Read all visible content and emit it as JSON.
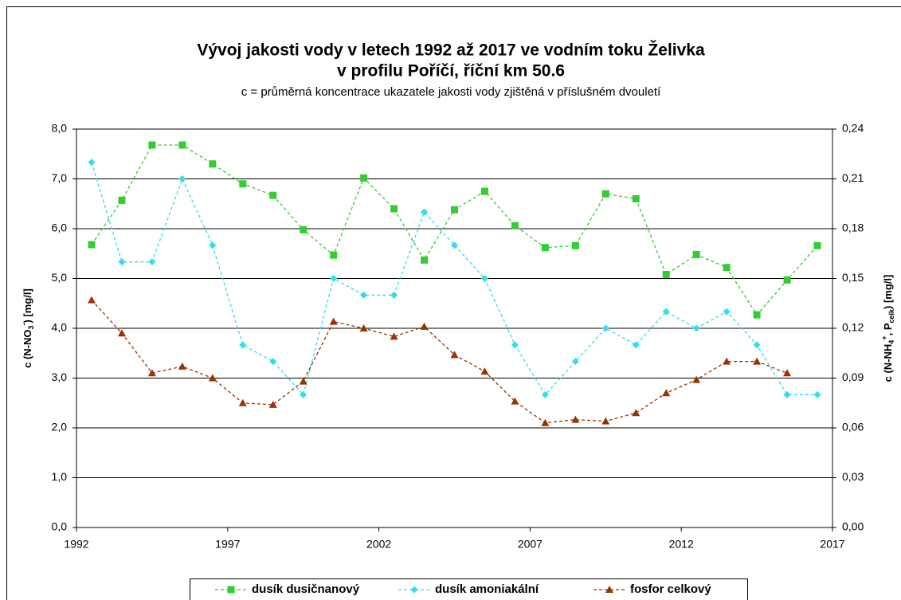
{
  "chart_data": {
    "type": "line",
    "title": [
      "Vývoj jakosti vody v letech 1992 až 2017 ve vodním toku Želivka",
      "v profilu Poříčí, říční km 50.6"
    ],
    "subtitle": "c = průměrná koncentrace ukazatele jakosti vody zjištěná v příslušném dvouletí",
    "ylabel": [
      "c (N-NO",
      "3",
      "-",
      ") [mg/l]"
    ],
    "y2label": [
      "c (N-NH",
      "4",
      "+",
      ",  P",
      "celk",
      ") [mg/l]"
    ],
    "x": [
      1992.5,
      1993.5,
      1994.5,
      1995.5,
      1996.5,
      1997.5,
      1998.5,
      1999.5,
      2000.5,
      2001.5,
      2002.5,
      2003.5,
      2004.5,
      2005.5,
      2006.5,
      2007.5,
      2008.5,
      2009.5,
      2010.5,
      2011.5,
      2012.5,
      2013.5,
      2014.5,
      2015.5,
      2016.5
    ],
    "xlim": [
      1992,
      2017
    ],
    "xticks": [
      1992,
      1997,
      2002,
      2007,
      2012,
      2017
    ],
    "ylim": [
      0,
      8
    ],
    "yticks": [
      {
        "value": 0,
        "label": "0,0"
      },
      {
        "value": 1,
        "label": "1,0"
      },
      {
        "value": 2,
        "label": "2,0"
      },
      {
        "value": 3,
        "label": "3,0"
      },
      {
        "value": 4,
        "label": "4,0"
      },
      {
        "value": 5,
        "label": "5,0"
      },
      {
        "value": 6,
        "label": "6,0"
      },
      {
        "value": 7,
        "label": "7,0"
      },
      {
        "value": 8,
        "label": "8,0"
      }
    ],
    "y2lim": [
      0,
      0.24
    ],
    "y2ticks": [
      {
        "value": 0,
        "label": "0,00"
      },
      {
        "value": 0.03,
        "label": "0,03"
      },
      {
        "value": 0.06,
        "label": "0,06"
      },
      {
        "value": 0.09,
        "label": "0,09"
      },
      {
        "value": 0.12,
        "label": "0,12"
      },
      {
        "value": 0.15,
        "label": "0,15"
      },
      {
        "value": 0.18,
        "label": "0,18"
      },
      {
        "value": 0.21,
        "label": "0,21"
      },
      {
        "value": 0.24,
        "label": "0,24"
      }
    ],
    "grid": true,
    "legend": "bottom",
    "series": [
      {
        "name": "dusík dusičnanový",
        "color": "#33cc33",
        "marker": "square",
        "values": [
          5.68,
          6.57,
          7.68,
          7.68,
          7.3,
          6.9,
          6.67,
          5.98,
          5.47,
          7.02,
          6.4,
          5.37,
          6.38,
          6.75,
          6.06,
          5.62,
          5.66,
          6.7,
          6.6,
          5.08,
          5.48,
          5.22,
          4.27,
          4.97,
          5.66
        ]
      },
      {
        "name": "dusík amoniakální",
        "color": "#33ddee",
        "marker": "diamond",
        "axis": "y2",
        "values": [
          0.22,
          0.16,
          0.16,
          0.21,
          0.17,
          0.11,
          0.1,
          0.08,
          0.15,
          0.14,
          0.14,
          0.19,
          0.17,
          0.15,
          0.11,
          0.08,
          0.1,
          0.12,
          0.11,
          0.13,
          0.12,
          0.13,
          0.11,
          0.08,
          0.08
        ]
      },
      {
        "name": "fosfor celkový",
        "color": "#993300",
        "marker": "triangle",
        "axis": "y2",
        "values": [
          0.137,
          0.117,
          0.093,
          0.097,
          0.09,
          0.075,
          0.074,
          0.088,
          0.124,
          0.12,
          0.115,
          0.121,
          0.104,
          0.094,
          0.076,
          0.063,
          0.065,
          0.064,
          0.069,
          0.081,
          0.089,
          0.1,
          0.1,
          0.093,
          null
        ]
      }
    ]
  }
}
